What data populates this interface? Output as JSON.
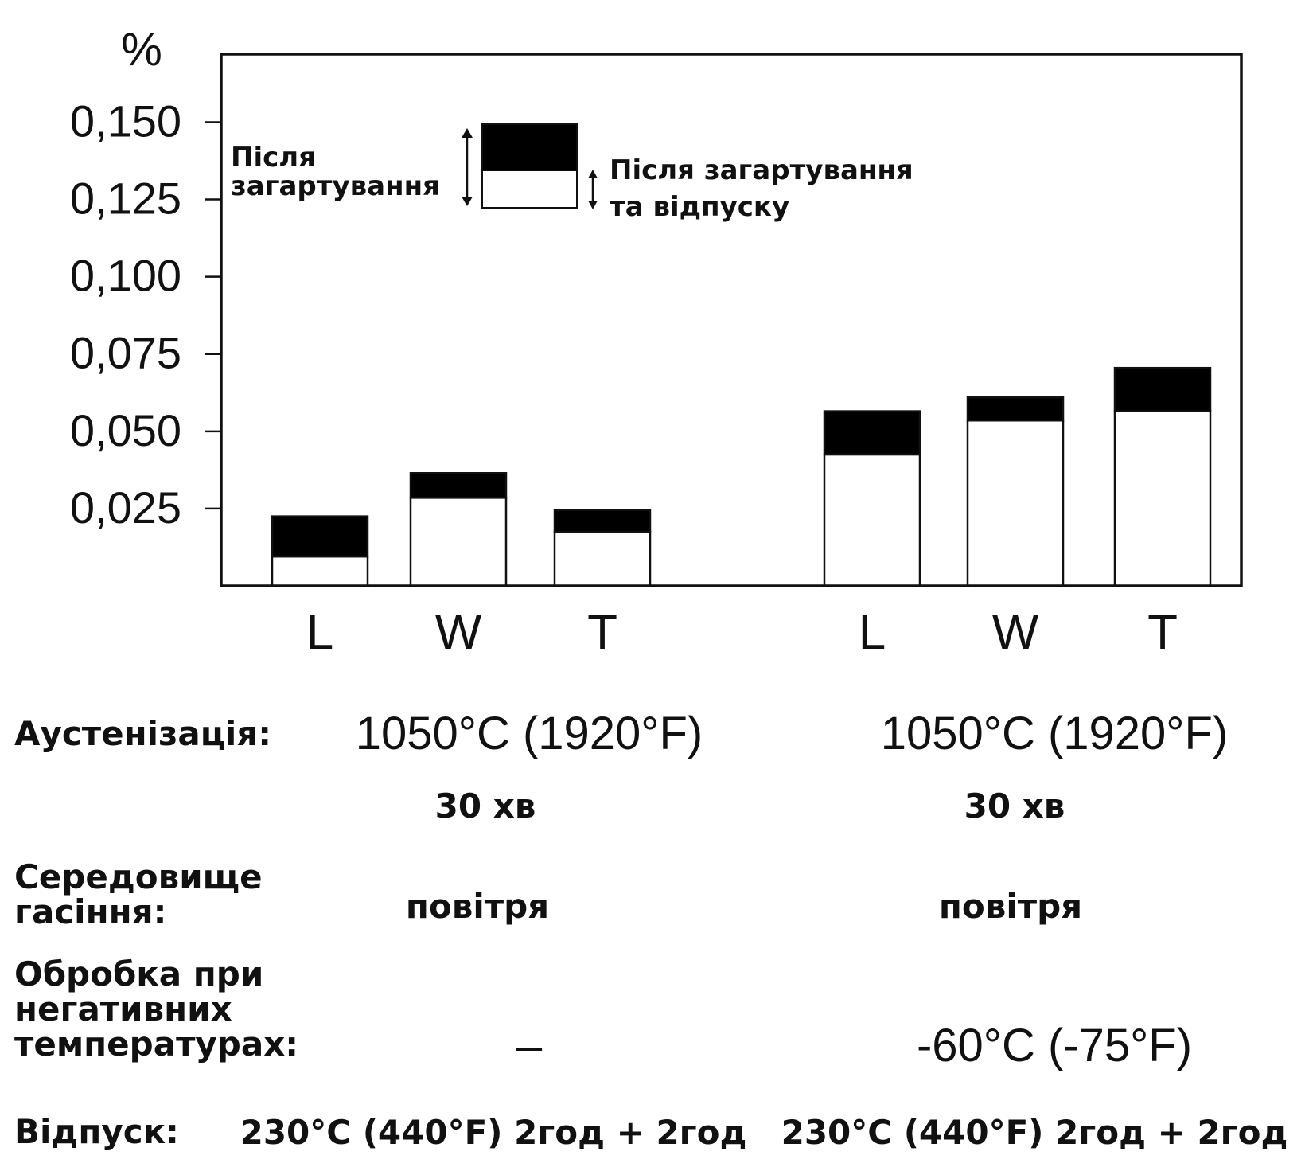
{
  "chart_data": {
    "type": "bar",
    "unit_label": "%",
    "yticks": [
      "0,025",
      "0,050",
      "0,075",
      "0,100",
      "0,125",
      "0,150"
    ],
    "ylim": [
      0,
      0.172
    ],
    "groups": [
      {
        "categories": [
          "L",
          "W",
          "T"
        ]
      },
      {
        "categories": [
          "L",
          "W",
          "T"
        ]
      }
    ],
    "series": [
      {
        "values": [
          0.0095,
          0.0285,
          0.0175,
          0.0425,
          0.0535,
          0.0565
        ]
      },
      {
        "values": [
          0.0225,
          0.0365,
          0.0245,
          0.0565,
          0.061,
          0.0705
        ]
      }
    ],
    "legend": {
      "after_quench": "Після\nзагартування",
      "after_quench_temper": "Після загартування\nта відпуску"
    },
    "colors": {
      "after_quench": "#000000",
      "after_quench_temper": "#ffffff",
      "outline": "#111111"
    },
    "grid": false
  },
  "table": {
    "austenitization": {
      "label": "Аустенізація:",
      "col1_temp": "1050°C (1920°F)",
      "col2_temp": "1050°C (1920°F)",
      "col1_time": "30 хв",
      "col2_time": "30 хв"
    },
    "quench_medium": {
      "label": "Середовище\nгасіння:",
      "col1": "повітря",
      "col2": "повітря"
    },
    "subzero": {
      "label": "Обробка при\nнегативних\nтемпературах:",
      "col1": "–",
      "col2": "-60°C (-75°F)"
    },
    "tempering": {
      "label": "Відпуск:",
      "col1": "230°C (440°F) 2год + 2год",
      "col2": "230°C (440°F) 2год + 2год"
    }
  }
}
